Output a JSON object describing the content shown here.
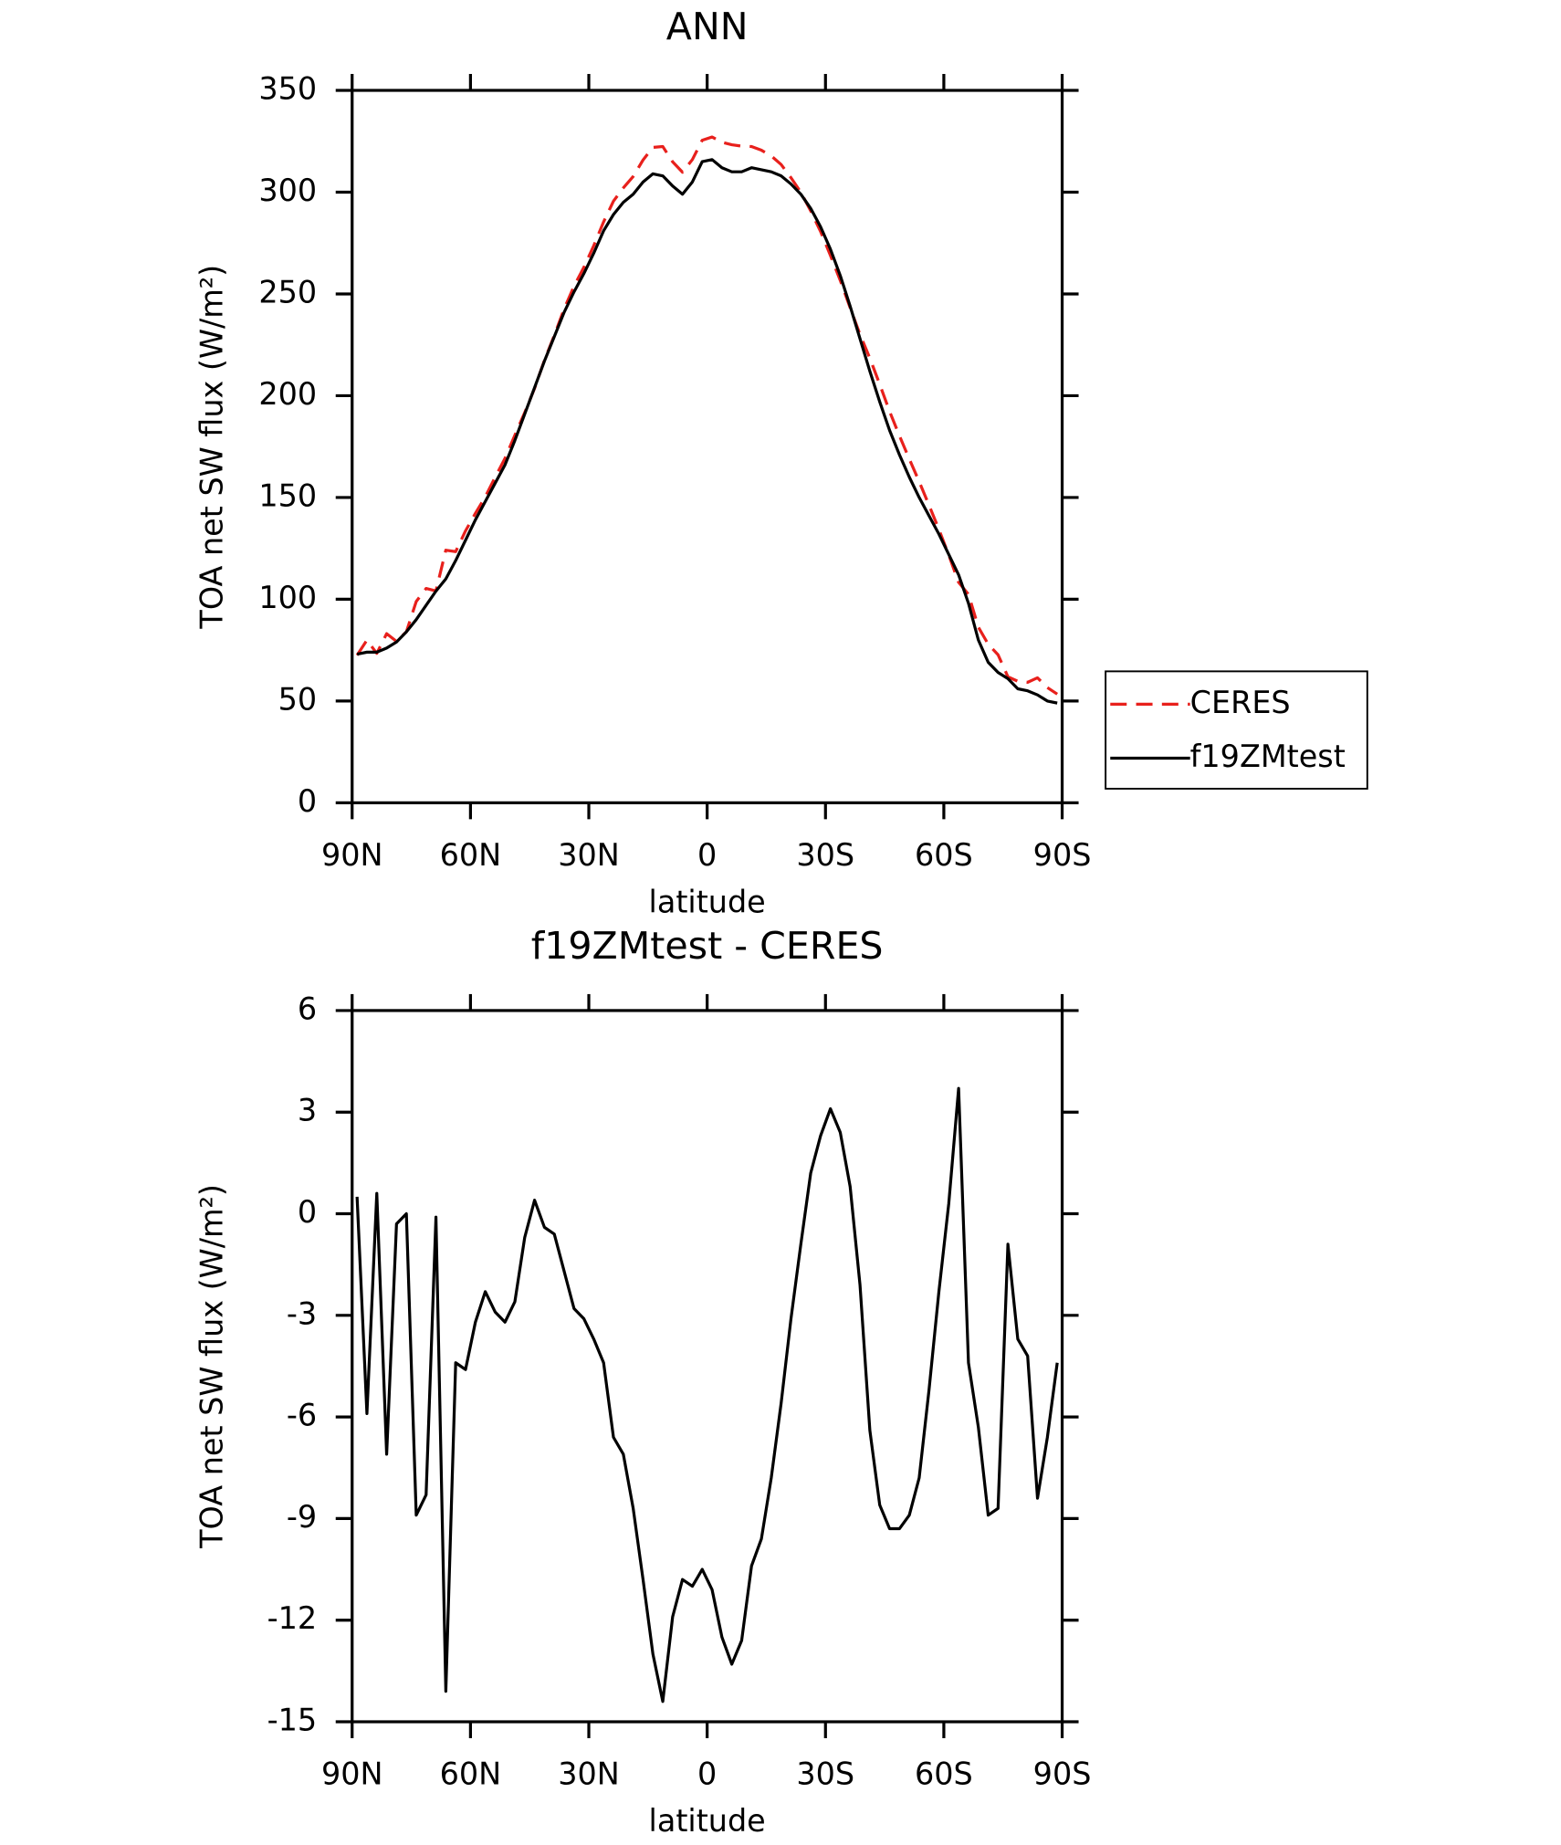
{
  "chart_data": [
    {
      "type": "line",
      "title": "ANN",
      "xlabel": "latitude",
      "ylabel": "TOA net SW flux (W/m²)",
      "x": [
        88.75,
        86.25,
        83.75,
        81.25,
        78.75,
        76.25,
        73.75,
        71.25,
        68.75,
        66.25,
        63.75,
        61.25,
        58.75,
        56.25,
        53.75,
        51.25,
        48.75,
        46.25,
        43.75,
        41.25,
        38.75,
        36.25,
        33.75,
        31.25,
        28.75,
        26.25,
        23.75,
        21.25,
        18.75,
        16.25,
        13.75,
        11.25,
        8.75,
        6.25,
        3.75,
        1.25,
        -1.25,
        -3.75,
        -6.25,
        -8.75,
        -11.25,
        -13.75,
        -16.25,
        -18.75,
        -21.25,
        -23.75,
        -26.25,
        -28.75,
        -31.25,
        -33.75,
        -36.25,
        -38.75,
        -41.25,
        -43.75,
        -46.25,
        -48.75,
        -51.25,
        -53.75,
        -56.25,
        -58.75,
        -61.25,
        -63.75,
        -66.25,
        -68.75,
        -71.25,
        -73.75,
        -76.25,
        -78.75,
        -81.25,
        -83.75,
        -86.25,
        -88.75
      ],
      "series": [
        {
          "name": "CERES",
          "color": "#e8201c",
          "dash": true,
          "values": [
            72.5,
            79.9,
            73.4,
            83.1,
            79.3,
            84,
            98.9,
            105.3,
            104.1,
            124.1,
            123.4,
            133.6,
            142.2,
            150.3,
            159.9,
            169.2,
            180.6,
            191.7,
            203.6,
            217.4,
            229.6,
            242.7,
            253.8,
            263.1,
            273.7,
            285.4,
            295.6,
            302.1,
            307.7,
            315.8,
            322,
            322.4,
            314.9,
            309.8,
            316,
            325.5,
            327.1,
            324.5,
            323.3,
            322.6,
            322.4,
            320.6,
            317.8,
            313.6,
            307.1,
            299.9,
            290.8,
            280.7,
            268.9,
            256.6,
            243.2,
            230.1,
            218.4,
            205.6,
            192.3,
            180.3,
            168.9,
            157.8,
            146.2,
            134.3,
            121.7,
            108.3,
            102.4,
            86.3,
            77.9,
            72.7,
            61.9,
            59.7,
            59.2,
            61.4,
            56.6,
            53.4
          ]
        },
        {
          "name": "f19ZMtest",
          "color": "#000000",
          "dash": false,
          "values": [
            73,
            74,
            74,
            76,
            79,
            84,
            90,
            97,
            104,
            110,
            119,
            129,
            139,
            148,
            157,
            166,
            178,
            191,
            204,
            217,
            229,
            241,
            251,
            260,
            270,
            281,
            289,
            295,
            299,
            305,
            309,
            308,
            303,
            299,
            305,
            315,
            316,
            312,
            310,
            310,
            312,
            311,
            310,
            308,
            304,
            299,
            292,
            283,
            272,
            259,
            244,
            228,
            212,
            197,
            183,
            171,
            160,
            150,
            141,
            132,
            122,
            112,
            98,
            80,
            69,
            64,
            61,
            56,
            55,
            53,
            50,
            49
          ]
        }
      ],
      "xlim": [
        90,
        -90
      ],
      "xticks": [
        {
          "value": 90,
          "label": "90N"
        },
        {
          "value": 60,
          "label": "60N"
        },
        {
          "value": 30,
          "label": "30N"
        },
        0,
        {
          "value": -30,
          "label": "30S"
        },
        {
          "value": -60,
          "label": "60S"
        },
        {
          "value": -90,
          "label": "90S"
        }
      ],
      "ylim": [
        0,
        350
      ],
      "yticks": [
        0,
        50,
        100,
        150,
        200,
        250,
        300,
        350
      ],
      "legend": "right"
    },
    {
      "type": "line",
      "title": "f19ZMtest - CERES",
      "xlabel": "latitude",
      "ylabel": "TOA net SW flux (W/m²)",
      "x": [
        88.75,
        86.25,
        83.75,
        81.25,
        78.75,
        76.25,
        73.75,
        71.25,
        68.75,
        66.25,
        63.75,
        61.25,
        58.75,
        56.25,
        53.75,
        51.25,
        48.75,
        46.25,
        43.75,
        41.25,
        38.75,
        36.25,
        33.75,
        31.25,
        28.75,
        26.25,
        23.75,
        21.25,
        18.75,
        16.25,
        13.75,
        11.25,
        8.75,
        6.25,
        3.75,
        1.25,
        -1.25,
        -3.75,
        -6.25,
        -8.75,
        -11.25,
        -13.75,
        -16.25,
        -18.75,
        -21.25,
        -23.75,
        -26.25,
        -28.75,
        -31.25,
        -33.75,
        -36.25,
        -38.75,
        -41.25,
        -43.75,
        -46.25,
        -48.75,
        -51.25,
        -53.75,
        -56.25,
        -58.75,
        -61.25,
        -63.75,
        -66.25,
        -68.75,
        -71.25,
        -73.75,
        -76.25,
        -78.75,
        -81.25,
        -83.75,
        -86.25,
        -88.75
      ],
      "series": [
        {
          "color": "#000000",
          "dash": false,
          "values": [
            0.5,
            -5.9,
            0.6,
            -7.1,
            -0.3,
            0,
            -8.9,
            -8.3,
            -0.1,
            -14.1,
            -4.4,
            -4.6,
            -3.2,
            -2.3,
            -2.9,
            -3.2,
            -2.6,
            -0.7,
            0.4,
            -0.4,
            -0.6,
            -1.7,
            -2.8,
            -3.1,
            -3.7,
            -4.4,
            -6.6,
            -7.1,
            -8.7,
            -10.8,
            -13,
            -14.4,
            -11.9,
            -10.8,
            -11,
            -10.5,
            -11.1,
            -12.5,
            -13.3,
            -12.6,
            -10.4,
            -9.6,
            -7.8,
            -5.6,
            -3.1,
            -0.9,
            1.2,
            2.3,
            3.1,
            2.4,
            0.8,
            -2.1,
            -6.4,
            -8.6,
            -9.3,
            -9.3,
            -8.9,
            -7.8,
            -5.2,
            -2.3,
            0.3,
            3.7,
            -4.4,
            -6.3,
            -8.9,
            -8.7,
            -0.9,
            -3.7,
            -4.2,
            -8.4,
            -6.6,
            -4.4
          ]
        }
      ],
      "xlim": [
        90,
        -90
      ],
      "xticks": [
        {
          "value": 90,
          "label": "90N"
        },
        {
          "value": 60,
          "label": "60N"
        },
        {
          "value": 30,
          "label": "30N"
        },
        0,
        {
          "value": -30,
          "label": "30S"
        },
        {
          "value": -60,
          "label": "60S"
        },
        {
          "value": -90,
          "label": "90S"
        }
      ],
      "ylim": [
        -15,
        6
      ],
      "yticks": [
        -15,
        -12,
        -9,
        -6,
        -3,
        0,
        3,
        6
      ]
    }
  ]
}
